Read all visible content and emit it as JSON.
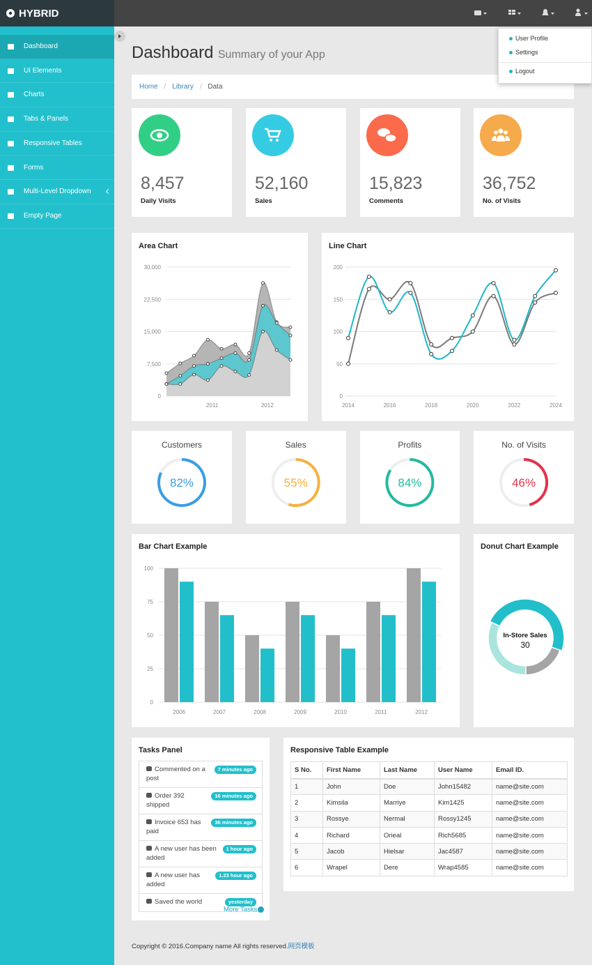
{
  "brand": "HYBRID",
  "menu": [
    "Dashboard",
    "UI Elements",
    "Charts",
    "Tabs & Panels",
    "Responsive Tables",
    "Forms",
    "Multi-Level Dropdown",
    "Empty Page"
  ],
  "user_menu": [
    "User Profile",
    "Settings",
    "Logout"
  ],
  "header": {
    "title": "Dashboard",
    "subtitle": "Summary of your App"
  },
  "breadcrumb": [
    "Home",
    "Library",
    "Data"
  ],
  "stats": [
    {
      "value": "8,457",
      "label": "Daily Visits"
    },
    {
      "value": "52,160",
      "label": "Sales"
    },
    {
      "value": "15,823",
      "label": "Comments"
    },
    {
      "value": "36,752",
      "label": "No. of Visits"
    }
  ],
  "chart_data": [
    {
      "type": "area",
      "title": "Area Chart",
      "x": [
        2010.17,
        2010.42,
        2010.67,
        2010.92,
        2011.17,
        2011.42,
        2011.67,
        2011.92,
        2012.17,
        2012.42
      ],
      "xlim": [
        2010.17,
        2012.42
      ],
      "xticks": [
        2011,
        2012
      ],
      "ylim": [
        0,
        30000
      ],
      "yticks": [
        0,
        {
          "value": 7500,
          "label": "7,500"
        },
        {
          "value": 15000,
          "label": "15,000"
        },
        {
          "value": 22500,
          "label": "22,500"
        },
        {
          "value": 30000,
          "label": "30,000"
        }
      ],
      "grid": true,
      "series": [
        {
          "color": "#b5b5b5",
          "values": [
            5300,
            7600,
            9400,
            13100,
            11000,
            12000,
            10000,
            26300,
            17200,
            16000
          ]
        },
        {
          "color": "#5cc7ce",
          "values": [
            2800,
            4700,
            7000,
            7500,
            8800,
            10000,
            8400,
            21000,
            17000,
            14100
          ]
        },
        {
          "color": "#d2d2d2",
          "values": [
            2800,
            2800,
            5000,
            3700,
            7000,
            5700,
            4900,
            15000,
            10700,
            8400
          ]
        }
      ]
    },
    {
      "type": "line",
      "title": "Line Chart",
      "x": [
        2014,
        2015,
        2016,
        2017,
        2018,
        2019,
        2020,
        2021,
        2022,
        2023,
        2024
      ],
      "xlim": [
        2014,
        2024
      ],
      "xticks": [
        2014,
        2016,
        2018,
        2020,
        2022,
        2024
      ],
      "ylim": [
        0,
        200
      ],
      "yticks": [
        0,
        50,
        100,
        150,
        200
      ],
      "grid": true,
      "series": [
        {
          "color": "#7a7a7a",
          "values": [
            50,
            166,
            150,
            175,
            80,
            90,
            100,
            155,
            80,
            145,
            160
          ]
        },
        {
          "color": "#1fb8c4",
          "values": [
            90,
            185,
            130,
            160,
            65,
            70,
            125,
            175,
            87,
            155,
            195
          ]
        }
      ]
    },
    {
      "type": "gauge",
      "title": "Customers",
      "values": [
        82
      ],
      "value_labels": [
        "82%"
      ],
      "ylim": [
        0,
        100
      ],
      "color": "#3a9de6"
    },
    {
      "type": "gauge",
      "title": "Sales",
      "values": [
        55
      ],
      "value_labels": [
        "55%"
      ],
      "ylim": [
        0,
        100
      ],
      "color": "#f6b13e"
    },
    {
      "type": "gauge",
      "title": "Profits",
      "values": [
        84
      ],
      "value_labels": [
        "84%"
      ],
      "ylim": [
        0,
        100
      ],
      "color": "#25b9a0"
    },
    {
      "type": "gauge",
      "title": "No. of Visits",
      "values": [
        46
      ],
      "value_labels": [
        "46%"
      ],
      "ylim": [
        0,
        100
      ],
      "color": "#e1344b"
    },
    {
      "type": "bar",
      "title": "Bar Chart Example",
      "categories": [
        "2006",
        "2007",
        "2008",
        "2009",
        "2010",
        "2011",
        "2012"
      ],
      "ylim": [
        0,
        100
      ],
      "yticks": [
        0,
        25,
        50,
        75,
        100
      ],
      "grid": true,
      "series": [
        {
          "color": "#a5a5a5",
          "values": [
            100,
            75,
            50,
            75,
            50,
            75,
            100
          ]
        },
        {
          "color": "#22bfcb",
          "values": [
            90,
            65,
            40,
            65,
            40,
            65,
            90
          ]
        }
      ]
    },
    {
      "type": "donut",
      "title": "Donut Chart Example",
      "categories": [
        "In-Store Sales",
        null,
        null
      ],
      "values": [
        30,
        12,
        20
      ],
      "colors": [
        "#22bfcb",
        "#a5a5a5",
        "#a9e5dd"
      ]
    }
  ],
  "tasks": {
    "title": "Tasks Panel",
    "items": [
      {
        "text": "Commented on a post",
        "time": "7 minutes ago"
      },
      {
        "text": "Order 392 shipped",
        "time": "16 minutes ago"
      },
      {
        "text": "Invoice 653 has paid",
        "time": "36 minutes ago"
      },
      {
        "text": "A new user has been added",
        "time": "1 hour ago"
      },
      {
        "text": "A new user has added",
        "time": "1.23 hour ago"
      },
      {
        "text": "Saved the world",
        "time": "yesterday"
      }
    ],
    "more": "More Tasks"
  },
  "table": {
    "title": "Responsive Table Example",
    "header": [
      "S No.",
      "First Name",
      "Last Name",
      "User Name",
      "Email ID."
    ],
    "rows": [
      [
        1,
        "John",
        "Doe",
        "John15482",
        "name@site.com"
      ],
      [
        2,
        "Kimsila",
        "Marriye",
        "Kim1425",
        "name@site.com"
      ],
      [
        3,
        "Rossye",
        "Nermal",
        "Rossy1245",
        "name@site.com"
      ],
      [
        4,
        "Richard",
        "Orieal",
        "Rich5685",
        "name@site.com"
      ],
      [
        5,
        "Jacob",
        "Hielsar",
        "Jac4587",
        "name@site.com"
      ],
      [
        6,
        "Wrapel",
        "Dere",
        "Wrap4585",
        "name@site.com"
      ]
    ]
  },
  "footer": {
    "text": "Copyright © 2016.Company name All rights reserved.",
    "link": "网页模板"
  }
}
